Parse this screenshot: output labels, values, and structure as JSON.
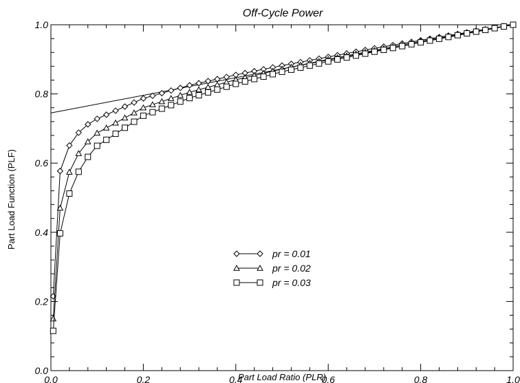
{
  "chart_data": {
    "type": "line",
    "title": "Off-Cycle Power",
    "xlabel": "Part Load Ratio (PLR)",
    "ylabel": "Part Load Function (PLF)",
    "xlim": [
      0.0,
      1.0
    ],
    "ylim": [
      0.0,
      1.0
    ],
    "xticks": [
      "0.0",
      "0.2",
      "0.4",
      "0.6",
      "0.8",
      "1.0"
    ],
    "yticks": [
      "0.0",
      "0.2",
      "0.4",
      "0.6",
      "0.8",
      "1.0"
    ],
    "grid": false,
    "legend_position": "lower-center",
    "reference_line": {
      "x": [
        0.0,
        1.0
      ],
      "y": [
        0.745,
        1.0
      ]
    },
    "series": [
      {
        "name": "pr = 0.01",
        "marker": "diamond",
        "x": [
          0.005,
          0.02,
          0.04,
          0.06,
          0.08,
          0.1,
          0.2,
          0.3,
          0.4,
          0.5,
          0.6,
          0.7,
          0.8,
          0.9,
          1.0
        ],
        "y": [
          0.215,
          0.577,
          0.651,
          0.688,
          0.712,
          0.728,
          0.787,
          0.825,
          0.855,
          0.882,
          0.907,
          0.932,
          0.955,
          0.978,
          1.0
        ]
      },
      {
        "name": "pr = 0.02",
        "marker": "triangle",
        "x": [
          0.005,
          0.02,
          0.04,
          0.06,
          0.08,
          0.1,
          0.2,
          0.3,
          0.4,
          0.5,
          0.6,
          0.7,
          0.8,
          0.9,
          1.0
        ],
        "y": [
          0.15,
          0.47,
          0.574,
          0.628,
          0.662,
          0.687,
          0.76,
          0.805,
          0.841,
          0.872,
          0.9,
          0.926,
          0.952,
          0.976,
          1.0
        ]
      },
      {
        "name": "pr = 0.03",
        "marker": "square",
        "x": [
          0.005,
          0.02,
          0.04,
          0.06,
          0.08,
          0.1,
          0.2,
          0.3,
          0.4,
          0.5,
          0.6,
          0.7,
          0.8,
          0.9,
          1.0
        ],
        "y": [
          0.115,
          0.397,
          0.512,
          0.575,
          0.618,
          0.65,
          0.737,
          0.788,
          0.829,
          0.864,
          0.894,
          0.922,
          0.949,
          0.975,
          1.0
        ]
      }
    ]
  }
}
